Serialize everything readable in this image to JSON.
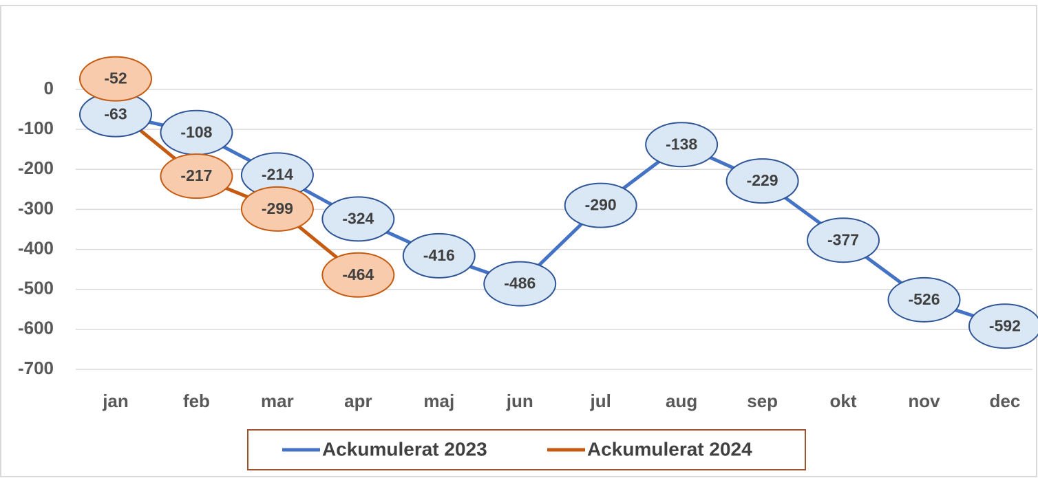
{
  "chart_data": {
    "type": "line",
    "categories": [
      "jan",
      "feb",
      "mar",
      "apr",
      "maj",
      "jun",
      "jul",
      "aug",
      "sep",
      "okt",
      "nov",
      "dec"
    ],
    "series": [
      {
        "name": "Ackumulerat 2023",
        "color": "#4472c4",
        "label_fill": "#dae8f5",
        "label_stroke": "#2f5597",
        "values": [
          -63,
          -108,
          -214,
          -324,
          -416,
          -486,
          -290,
          -138,
          -229,
          -377,
          -526,
          -592
        ]
      },
      {
        "name": "Ackumulerat 2024",
        "color": "#c55a11",
        "label_fill": "#f8cbad",
        "label_stroke": "#c55a11",
        "values": [
          -52,
          -217,
          -299,
          -464,
          null,
          null,
          null,
          null,
          null,
          null,
          null,
          null
        ]
      }
    ],
    "ylim": [
      -700,
      0
    ],
    "yticks": [
      0,
      -100,
      -200,
      -300,
      -400,
      -500,
      -600,
      -700
    ],
    "grid": true,
    "legend": "bottom"
  }
}
